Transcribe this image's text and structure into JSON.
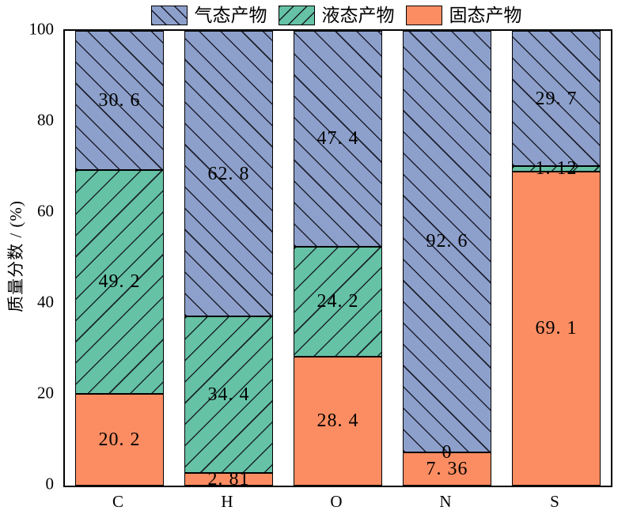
{
  "figure": {
    "background": "#ffffff",
    "box_color": "#000000",
    "text_color": "#000000"
  },
  "legend": {
    "position": "top-center",
    "items": [
      {
        "label": "气态产物",
        "color": "#8da0cb",
        "hatch": "\\"
      },
      {
        "label": "液态产物",
        "color": "#66c2a5",
        "hatch": "/"
      },
      {
        "label": "固态产物",
        "color": "#fc8d62",
        "hatch": "none"
      }
    ]
  },
  "axes": {
    "ylabel": "质量分数 / (%)",
    "yticks": [
      "0",
      "20",
      "40",
      "60",
      "80",
      "100"
    ],
    "ytick_values": [
      0,
      20,
      40,
      60,
      80,
      100
    ],
    "categories": [
      "C",
      "H",
      "O",
      "N",
      "S"
    ]
  },
  "chart_data": {
    "type": "bar",
    "stacked": true,
    "title": "",
    "xlabel": "",
    "ylabel": "质量分数 / (%)",
    "ylim": [
      0,
      100
    ],
    "grid": false,
    "legend_position": "top",
    "categories": [
      "C",
      "H",
      "O",
      "N",
      "S"
    ],
    "series": [
      {
        "name": "固态产物",
        "color": "#fc8d62",
        "hatch": "none",
        "values": [
          20.2,
          2.81,
          28.4,
          7.36,
          69.1
        ],
        "labels": [
          "20. 2",
          "2. 81",
          "28. 4",
          "7. 36",
          "69. 1"
        ]
      },
      {
        "name": "液态产物",
        "color": "#66c2a5",
        "hatch": "/",
        "values": [
          49.2,
          34.4,
          24.2,
          0,
          1.12
        ],
        "labels": [
          "49. 2",
          "34. 4",
          "24. 2",
          "0",
          "1. 12"
        ]
      },
      {
        "name": "气态产物",
        "color": "#8da0cb",
        "hatch": "\\",
        "values": [
          30.6,
          62.8,
          47.4,
          92.6,
          29.7
        ],
        "labels": [
          "30. 6",
          "62. 8",
          "47. 4",
          "92. 6",
          "29. 7"
        ]
      }
    ]
  }
}
